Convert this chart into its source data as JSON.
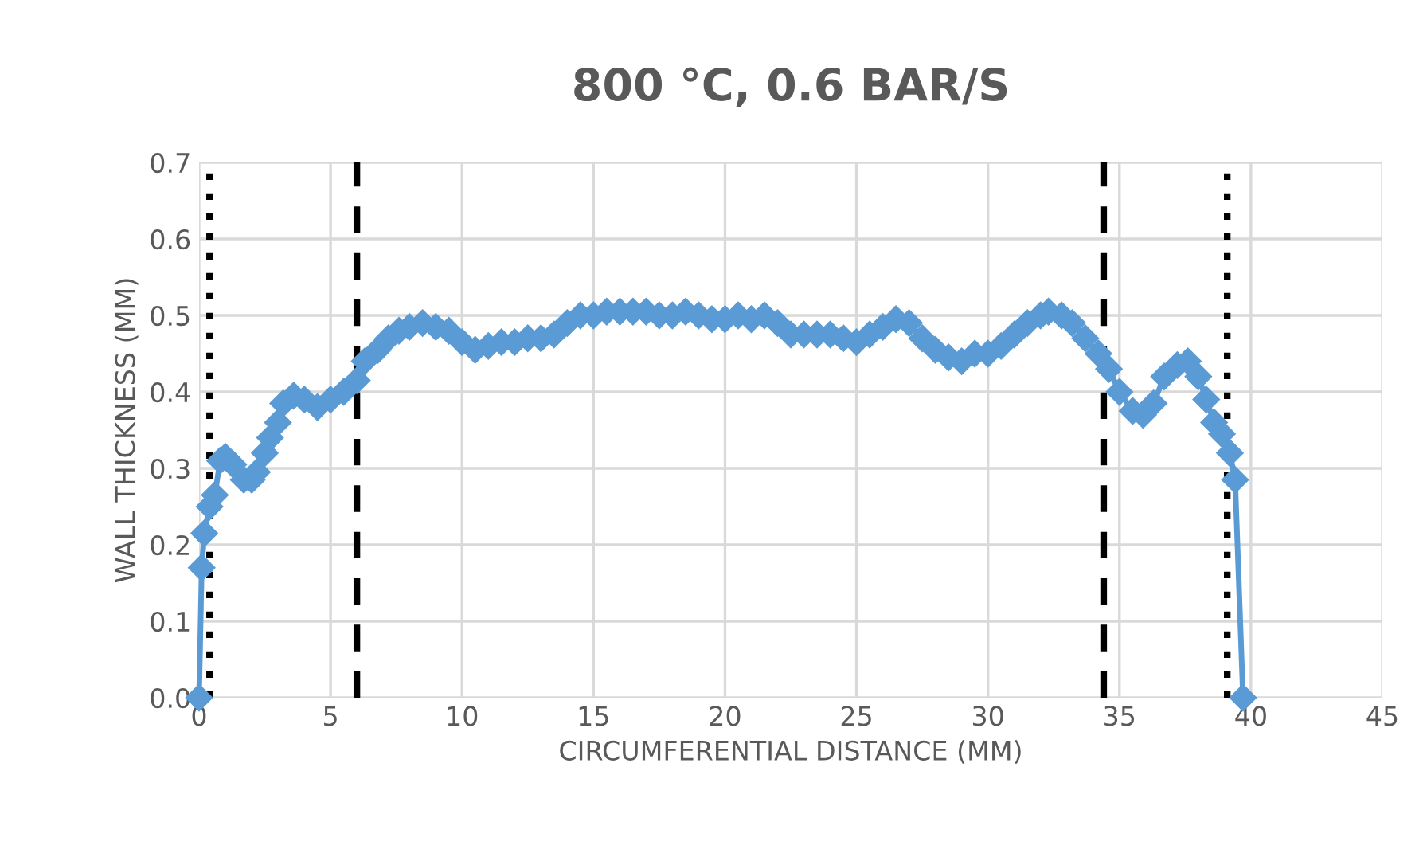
{
  "chart_data": {
    "type": "line",
    "title": "800 °C, 0.6 BAR/S",
    "xlabel": "CIRCUMFERENTIAL DISTANCE (MM)",
    "ylabel": "WALL THICKNESS (MM)",
    "xlim": [
      0,
      45
    ],
    "xticks": [
      0,
      5,
      10,
      15,
      20,
      25,
      30,
      35,
      40,
      45
    ],
    "ylim": [
      0,
      0.7
    ],
    "yticks": [
      {
        "value": 0,
        "label": "0.0"
      },
      0.1,
      0.2,
      0.3,
      0.4,
      0.5,
      0.6,
      0.7
    ],
    "grid": true,
    "legend": false,
    "marker": "diamond",
    "line_style": "solid",
    "series": [
      {
        "color": "#5b9bd5",
        "x": [
          0,
          0.1,
          0.2,
          0.4,
          0.6,
          0.8,
          1.0,
          1.3,
          1.7,
          2.0,
          2.2,
          2.5,
          2.7,
          3.0,
          3.2,
          3.6,
          4.0,
          4.5,
          5.0,
          5.5,
          6.0,
          6.3,
          6.8,
          7.2,
          7.6,
          8.0,
          8.5,
          9.0,
          9.5,
          10.0,
          10.5,
          11.0,
          11.5,
          12.0,
          12.5,
          13.0,
          13.5,
          14.0,
          14.5,
          15.0,
          15.5,
          16.0,
          16.5,
          17.0,
          17.5,
          18.0,
          18.5,
          19.0,
          19.5,
          20.0,
          20.5,
          21.0,
          21.5,
          22.0,
          22.5,
          23.0,
          23.5,
          24.0,
          24.5,
          25.0,
          25.5,
          26.0,
          26.5,
          27.0,
          27.5,
          28.0,
          28.5,
          29.0,
          29.5,
          30.0,
          30.5,
          31.0,
          31.5,
          32.0,
          32.3,
          32.8,
          33.2,
          33.7,
          34.2,
          34.6,
          35.0,
          35.5,
          35.9,
          36.3,
          36.7,
          37.2,
          37.6,
          38.0,
          38.3,
          38.6,
          38.9,
          39.2,
          39.4,
          39.7
        ],
        "values": [
          0,
          0.17,
          0.215,
          0.25,
          0.265,
          0.31,
          0.315,
          0.305,
          0.285,
          0.285,
          0.295,
          0.32,
          0.34,
          0.36,
          0.385,
          0.395,
          0.39,
          0.38,
          0.39,
          0.4,
          0.415,
          0.44,
          0.455,
          0.47,
          0.48,
          0.485,
          0.49,
          0.485,
          0.48,
          0.465,
          0.455,
          0.46,
          0.465,
          0.465,
          0.47,
          0.47,
          0.475,
          0.49,
          0.5,
          0.5,
          0.505,
          0.505,
          0.505,
          0.505,
          0.5,
          0.5,
          0.505,
          0.5,
          0.495,
          0.495,
          0.5,
          0.495,
          0.5,
          0.49,
          0.475,
          0.475,
          0.475,
          0.475,
          0.47,
          0.465,
          0.475,
          0.485,
          0.495,
          0.49,
          0.47,
          0.455,
          0.445,
          0.44,
          0.45,
          0.45,
          0.46,
          0.475,
          0.49,
          0.5,
          0.505,
          0.5,
          0.49,
          0.47,
          0.45,
          0.43,
          0.4,
          0.375,
          0.37,
          0.385,
          0.42,
          0.435,
          0.44,
          0.42,
          0.39,
          0.36,
          0.345,
          0.32,
          0.285,
          0
        ]
      }
    ],
    "ref_lines": [
      {
        "axis": "x",
        "value": 0.4,
        "color": "#000000",
        "line_style": "dotted"
      },
      {
        "axis": "x",
        "value": 6.0,
        "color": "#000000",
        "line_style": "dashed"
      },
      {
        "axis": "x",
        "value": 34.4,
        "color": "#000000",
        "line_style": "dashed"
      },
      {
        "axis": "x",
        "value": 39.1,
        "color": "#000000",
        "line_style": "dotted"
      }
    ]
  }
}
